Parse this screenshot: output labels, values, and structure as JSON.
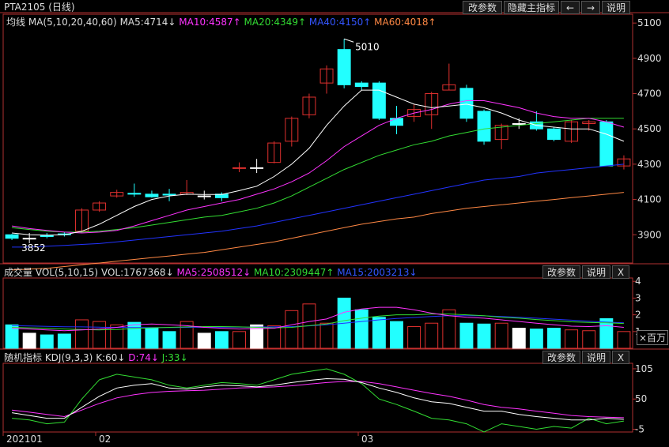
{
  "title_bar": {
    "symbol": "PTA2105 (日线)",
    "buttons": [
      "改参数",
      "隐藏主指标",
      "←",
      "→",
      "说明"
    ]
  },
  "main_panel": {
    "indicator_name": "均线",
    "params": "MA(5,10,20,40,60)",
    "ma5": "MA5:4714↓",
    "ma10": "MA10:4587↑",
    "ma20": "MA20:4349↑",
    "ma40": "MA40:4150↑",
    "ma60": "MA60:4018↑",
    "high_label": "5010",
    "low_label": "3852"
  },
  "vol_panel": {
    "label": "成交量 VOL(5,10,15)",
    "vol": "VOL:1767368↓",
    "ma5": "MA5:2508512↓",
    "ma10": "MA10:2309447↑",
    "ma15": "MA15:2003213↓",
    "buttons": [
      "改参数",
      "说明",
      "X"
    ],
    "unit_label": "×百万"
  },
  "kdj_panel": {
    "label": "随机指标 KDJ(9,3,3)",
    "k": "K:60↓",
    "d": "D:74↓",
    "j": "J:33↓",
    "buttons": [
      "改参数",
      "说明",
      "X"
    ]
  },
  "date_axis": [
    "202101",
    "02",
    "03"
  ],
  "colors": {
    "up": "#e0302e",
    "down": "#22ffff",
    "ma5": "#ffffff",
    "ma10": "#ff33ff",
    "ma20": "#33dd33",
    "ma40": "#2233ff",
    "ma60": "#ff8844"
  },
  "chart_data": [
    {
      "type": "candlestick",
      "y_ticks": [
        3900,
        4100,
        4300,
        4500,
        4700,
        4900,
        5100
      ],
      "ylim": [
        3740,
        5150
      ],
      "candles": [
        {
          "o": 3900,
          "c": 3880,
          "h": 3905,
          "l": 3870,
          "dir": "down"
        },
        {
          "o": 3880,
          "c": 3880,
          "h": 3910,
          "l": 3852,
          "dir": "flat"
        },
        {
          "o": 3890,
          "c": 3895,
          "h": 3910,
          "l": 3880,
          "dir": "down"
        },
        {
          "o": 3900,
          "c": 3905,
          "h": 3915,
          "l": 3890,
          "dir": "down"
        },
        {
          "o": 3920,
          "c": 4040,
          "h": 4050,
          "l": 3910,
          "dir": "up"
        },
        {
          "o": 4040,
          "c": 4080,
          "h": 4090,
          "l": 4030,
          "dir": "up"
        },
        {
          "o": 4120,
          "c": 4140,
          "h": 4155,
          "l": 4110,
          "dir": "up"
        },
        {
          "o": 4135,
          "c": 4130,
          "h": 4190,
          "l": 4115,
          "dir": "down"
        },
        {
          "o": 4130,
          "c": 4115,
          "h": 4150,
          "l": 4110,
          "dir": "down"
        },
        {
          "o": 4125,
          "c": 4130,
          "h": 4160,
          "l": 4090,
          "dir": "down"
        },
        {
          "o": 4130,
          "c": 4140,
          "h": 4210,
          "l": 4125,
          "dir": "up"
        },
        {
          "o": 4120,
          "c": 4120,
          "h": 4150,
          "l": 4100,
          "dir": "flat"
        },
        {
          "o": 4130,
          "c": 4110,
          "h": 4140,
          "l": 4090,
          "dir": "down"
        },
        {
          "o": 4280,
          "c": 4280,
          "h": 4310,
          "l": 4255,
          "dir": "up"
        },
        {
          "o": 4280,
          "c": 4280,
          "h": 4330,
          "l": 4250,
          "dir": "flat"
        },
        {
          "o": 4310,
          "c": 4420,
          "h": 4430,
          "l": 4305,
          "dir": "up"
        },
        {
          "o": 4430,
          "c": 4560,
          "h": 4570,
          "l": 4400,
          "dir": "up"
        },
        {
          "o": 4580,
          "c": 4680,
          "h": 4700,
          "l": 4560,
          "dir": "up"
        },
        {
          "o": 4760,
          "c": 4840,
          "h": 4860,
          "l": 4700,
          "dir": "up"
        },
        {
          "o": 4950,
          "c": 4750,
          "h": 5010,
          "l": 4730,
          "dir": "down"
        },
        {
          "o": 4760,
          "c": 4740,
          "h": 4770,
          "l": 4720,
          "dir": "down"
        },
        {
          "o": 4760,
          "c": 4560,
          "h": 4770,
          "l": 4550,
          "dir": "down"
        },
        {
          "o": 4560,
          "c": 4520,
          "h": 4630,
          "l": 4470,
          "dir": "down"
        },
        {
          "o": 4570,
          "c": 4610,
          "h": 4640,
          "l": 4540,
          "dir": "up"
        },
        {
          "o": 4580,
          "c": 4700,
          "h": 4710,
          "l": 4500,
          "dir": "up"
        },
        {
          "o": 4720,
          "c": 4750,
          "h": 4870,
          "l": 4720,
          "dir": "up"
        },
        {
          "o": 4730,
          "c": 4560,
          "h": 4750,
          "l": 4540,
          "dir": "down"
        },
        {
          "o": 4600,
          "c": 4430,
          "h": 4610,
          "l": 4410,
          "dir": "down"
        },
        {
          "o": 4440,
          "c": 4520,
          "h": 4530,
          "l": 4385,
          "dir": "up"
        },
        {
          "o": 4530,
          "c": 4530,
          "h": 4560,
          "l": 4500,
          "dir": "flat"
        },
        {
          "o": 4540,
          "c": 4500,
          "h": 4600,
          "l": 4490,
          "dir": "down"
        },
        {
          "o": 4500,
          "c": 4440,
          "h": 4510,
          "l": 4430,
          "dir": "down"
        },
        {
          "o": 4430,
          "c": 4540,
          "h": 4550,
          "l": 4420,
          "dir": "up"
        },
        {
          "o": 4540,
          "c": 4530,
          "h": 4550,
          "l": 4490,
          "dir": "up"
        },
        {
          "o": 4540,
          "c": 4290,
          "h": 4550,
          "l": 4290,
          "dir": "down"
        },
        {
          "o": 4290,
          "c": 4330,
          "h": 4350,
          "l": 4270,
          "dir": "up"
        }
      ],
      "ma5": [
        3910,
        3900,
        3898,
        3900,
        3920,
        3960,
        4010,
        4060,
        4100,
        4120,
        4130,
        4128,
        4128,
        4150,
        4175,
        4230,
        4300,
        4390,
        4520,
        4630,
        4720,
        4720,
        4680,
        4640,
        4620,
        4630,
        4640,
        4620,
        4590,
        4550,
        4520,
        4510,
        4500,
        4500,
        4470,
        4430
      ],
      "ma10": [
        3950,
        3935,
        3925,
        3915,
        3910,
        3915,
        3925,
        3950,
        3980,
        4010,
        4040,
        4060,
        4080,
        4100,
        4130,
        4160,
        4200,
        4250,
        4320,
        4400,
        4460,
        4520,
        4560,
        4590,
        4610,
        4640,
        4660,
        4660,
        4640,
        4620,
        4590,
        4570,
        4560,
        4560,
        4540,
        4510
      ],
      "ma20": [
        3940,
        3930,
        3920,
        3915,
        3915,
        3920,
        3930,
        3940,
        3955,
        3970,
        3985,
        4000,
        4010,
        4030,
        4050,
        4080,
        4120,
        4170,
        4220,
        4270,
        4310,
        4350,
        4380,
        4410,
        4430,
        4460,
        4480,
        4500,
        4510,
        4520,
        4530,
        4540,
        4550,
        4560,
        4560,
        4560
      ],
      "ma40": [
        3830,
        3830,
        3835,
        3840,
        3845,
        3850,
        3860,
        3870,
        3880,
        3890,
        3900,
        3910,
        3920,
        3935,
        3950,
        3970,
        3990,
        4010,
        4030,
        4050,
        4070,
        4090,
        4110,
        4130,
        4150,
        4170,
        4190,
        4210,
        4220,
        4230,
        4250,
        4260,
        4270,
        4280,
        4290,
        4300
      ],
      "ma60": [
        3700,
        3705,
        3710,
        3720,
        3730,
        3740,
        3750,
        3760,
        3770,
        3780,
        3790,
        3800,
        3815,
        3830,
        3845,
        3860,
        3880,
        3900,
        3920,
        3940,
        3960,
        3975,
        3990,
        4000,
        4020,
        4035,
        4050,
        4060,
        4070,
        4080,
        4090,
        4100,
        4110,
        4120,
        4130,
        4140
      ]
    },
    {
      "type": "bar",
      "y_ticks": [
        1,
        2,
        3,
        4
      ],
      "ylim": [
        0,
        4.2
      ],
      "values": [
        1.4,
        0.9,
        0.8,
        0.85,
        1.7,
        1.6,
        1.4,
        1.55,
        1.2,
        1.0,
        1.6,
        0.9,
        1.0,
        1.0,
        1.4,
        1.35,
        2.25,
        2.65,
        1.5,
        3.0,
        2.3,
        1.85,
        1.6,
        1.3,
        1.5,
        2.3,
        1.5,
        1.45,
        1.5,
        1.2,
        1.15,
        1.2,
        1.1,
        1.05,
        1.77,
        1.0
      ],
      "ma5": [
        1.2,
        1.15,
        1.1,
        1.05,
        1.1,
        1.15,
        1.25,
        1.4,
        1.45,
        1.4,
        1.35,
        1.25,
        1.2,
        1.15,
        1.18,
        1.2,
        1.4,
        1.6,
        1.75,
        2.15,
        2.35,
        2.45,
        2.45,
        2.3,
        2.1,
        1.95,
        1.85,
        1.8,
        1.7,
        1.6,
        1.5,
        1.4,
        1.32,
        1.3,
        1.35,
        1.25
      ],
      "ma10": [
        1.25,
        1.22,
        1.2,
        1.15,
        1.12,
        1.1,
        1.12,
        1.18,
        1.22,
        1.25,
        1.28,
        1.3,
        1.3,
        1.28,
        1.25,
        1.22,
        1.25,
        1.35,
        1.45,
        1.65,
        1.8,
        1.92,
        2.0,
        2.0,
        2.05,
        2.05,
        2.0,
        1.95,
        1.85,
        1.8,
        1.72,
        1.65,
        1.58,
        1.55,
        1.52,
        1.48
      ],
      "ma15": [
        1.35,
        1.33,
        1.31,
        1.29,
        1.28,
        1.26,
        1.25,
        1.24,
        1.24,
        1.24,
        1.25,
        1.26,
        1.26,
        1.26,
        1.27,
        1.28,
        1.3,
        1.34,
        1.4,
        1.5,
        1.6,
        1.7,
        1.78,
        1.84,
        1.9,
        1.95,
        1.95,
        1.94,
        1.9,
        1.85,
        1.8,
        1.74,
        1.68,
        1.62,
        1.56,
        1.52
      ]
    },
    {
      "type": "line",
      "y_ticks": [
        -5,
        50,
        105
      ],
      "ylim": [
        -10,
        115
      ],
      "k": [
        25,
        20,
        15,
        15,
        35,
        55,
        70,
        75,
        78,
        70,
        68,
        72,
        75,
        74,
        72,
        75,
        80,
        84,
        87,
        86,
        80,
        70,
        62,
        52,
        45,
        42,
        35,
        28,
        28,
        22,
        18,
        15,
        12,
        12,
        15,
        13
      ],
      "d": [
        30,
        26,
        22,
        18,
        30,
        42,
        52,
        58,
        62,
        64,
        65,
        66,
        68,
        70,
        71,
        72,
        74,
        77,
        80,
        82,
        82,
        78,
        72,
        66,
        60,
        55,
        48,
        40,
        35,
        32,
        28,
        24,
        20,
        18,
        17,
        16
      ],
      "j": [
        15,
        12,
        5,
        8,
        50,
        85,
        95,
        90,
        85,
        75,
        70,
        75,
        80,
        78,
        75,
        85,
        95,
        100,
        105,
        95,
        78,
        50,
        40,
        28,
        15,
        12,
        5,
        -10,
        5,
        0,
        -5,
        0,
        -3,
        15,
        5,
        10
      ]
    }
  ]
}
